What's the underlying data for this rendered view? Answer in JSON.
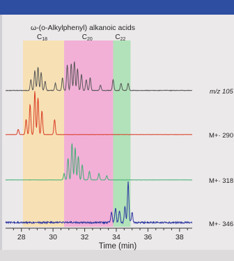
{
  "chart_data": {
    "type": "line",
    "title": "ω-(o-Alkylphenyl) alkanoic acids",
    "xlabel": "Time (min)",
    "xlim": [
      27.0,
      38.8
    ],
    "xticks": [
      "28",
      "30",
      "32",
      "34",
      "36",
      "38"
    ],
    "tick_values": [
      28,
      30,
      32,
      34,
      36,
      38
    ],
    "regions": [
      {
        "label_main": "C",
        "label_sub": "18",
        "x_start": 28.1,
        "x_end": 30.7,
        "color": "#f9dfaa"
      },
      {
        "label_main": "C",
        "label_sub": "20",
        "x_start": 30.7,
        "x_end": 33.8,
        "color": "#f3a6d4"
      },
      {
        "label_main": "C",
        "label_sub": "22",
        "x_start": 33.8,
        "x_end": 34.9,
        "color": "#a7e1b0"
      }
    ],
    "series": [
      {
        "name": "m/z 105",
        "color": "#555555",
        "baseline_noise": 0.015,
        "peaks": [
          [
            28.6,
            0.3
          ],
          [
            28.85,
            0.55
          ],
          [
            29.05,
            0.65
          ],
          [
            29.25,
            0.5
          ],
          [
            29.5,
            0.25
          ],
          [
            30.15,
            0.2
          ],
          [
            30.6,
            0.35
          ],
          [
            30.9,
            0.7
          ],
          [
            31.15,
            0.75
          ],
          [
            31.35,
            0.8
          ],
          [
            31.55,
            0.6
          ],
          [
            31.8,
            0.45
          ],
          [
            32.1,
            0.3
          ],
          [
            32.35,
            0.35
          ],
          [
            33.0,
            0.15
          ],
          [
            33.8,
            0.3
          ],
          [
            34.3,
            0.2
          ],
          [
            34.75,
            0.2
          ]
        ]
      },
      {
        "name": "M+· 290",
        "color": "#d93a22",
        "baseline_noise": 0.005,
        "peaks": [
          [
            27.8,
            0.12
          ],
          [
            28.3,
            0.35
          ],
          [
            28.55,
            0.7
          ],
          [
            28.85,
            1.0
          ],
          [
            29.05,
            0.85
          ],
          [
            29.3,
            0.55
          ],
          [
            30.1,
            0.35
          ]
        ]
      },
      {
        "name": "M+· 318",
        "color": "#3fae74",
        "baseline_noise": 0.005,
        "peaks": [
          [
            30.7,
            0.15
          ],
          [
            30.95,
            0.5
          ],
          [
            31.2,
            0.85
          ],
          [
            31.4,
            0.75
          ],
          [
            31.6,
            0.55
          ],
          [
            31.85,
            0.35
          ],
          [
            32.3,
            0.2
          ],
          [
            32.9,
            0.15
          ],
          [
            33.4,
            0.1
          ]
        ]
      },
      {
        "name": "M+· 346",
        "color": "#2b36a0",
        "baseline_noise": 0.04,
        "peaks": [
          [
            33.7,
            0.25
          ],
          [
            33.95,
            0.35
          ],
          [
            34.2,
            0.3
          ],
          [
            34.55,
            0.4
          ],
          [
            34.75,
            1.0
          ],
          [
            35.0,
            0.25
          ]
        ]
      }
    ]
  }
}
